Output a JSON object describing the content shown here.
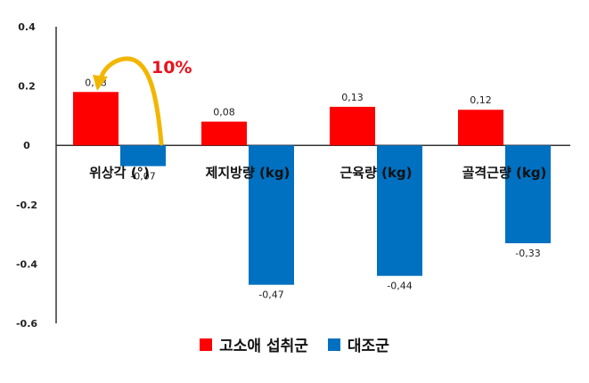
{
  "chart_data": {
    "type": "bar",
    "categories": [
      "위상각 (°)",
      "제지방량 (kg)",
      "근육량 (kg)",
      "골격근량 (kg)"
    ],
    "series": [
      {
        "name": "고소애 섭취군",
        "color": "#ff0000",
        "values": [
          0.18,
          0.08,
          0.13,
          0.12
        ],
        "labels": [
          "0,18",
          "0,08",
          "0,13",
          "0,12"
        ]
      },
      {
        "name": "대조군",
        "color": "#0070c0",
        "values": [
          -0.07,
          -0.47,
          -0.44,
          -0.33
        ],
        "labels": [
          "-0,07",
          "-0,47",
          "-0,44",
          "-0,33"
        ]
      }
    ],
    "yticks": [
      0.4,
      0.2,
      0,
      -0.2,
      -0.4,
      -0.6
    ],
    "ytick_labels": [
      "0.4",
      "0.2",
      "0",
      "-0.2",
      "-0.4",
      "-0.6"
    ],
    "ylim": [
      -0.6,
      0.4
    ],
    "annotation": {
      "text": "10%",
      "color": "#e8121c",
      "arrow_color": "#f2b600"
    },
    "grid": false,
    "legend_position": "bottom"
  }
}
